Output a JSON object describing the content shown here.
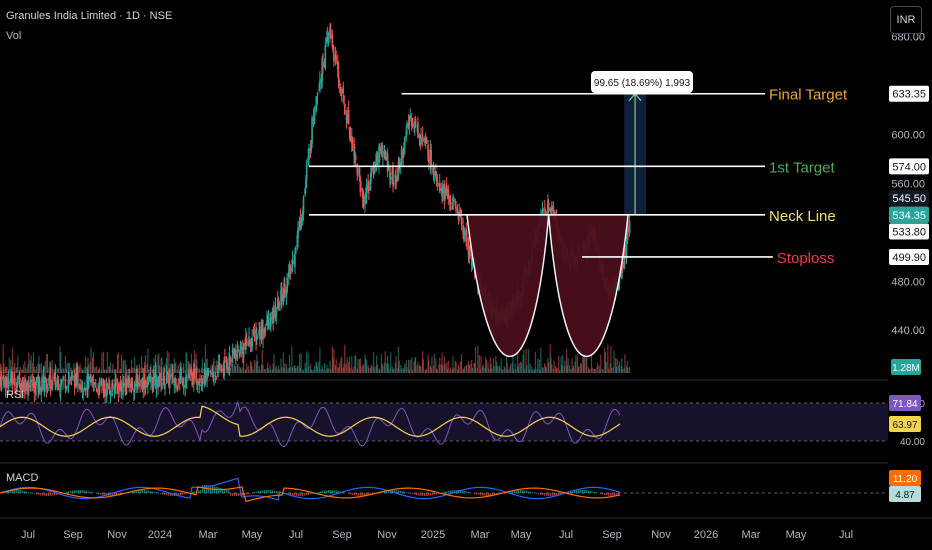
{
  "header": {
    "title": "Granules India Limited · 1D · NSE",
    "sub": "Vol",
    "currency": "INR"
  },
  "panes": {
    "rsi": "RSI",
    "macd": "MACD"
  },
  "chart_data": {
    "type": "line",
    "title": "Granules India Limited · 1D · NSE",
    "price_axis": {
      "ticks": [
        680,
        640,
        600,
        560,
        520,
        480,
        440
      ],
      "labels": [
        "680.00",
        "600.00",
        "560.00",
        "480.00",
        "440.00"
      ],
      "ylim": [
        405,
        710
      ]
    },
    "x_axis": {
      "labels": [
        "Jul",
        "Sep",
        "Nov",
        "2024",
        "Mar",
        "May",
        "Jul",
        "Sep",
        "Nov",
        "2025",
        "Mar",
        "May",
        "Jul",
        "Sep",
        "Nov",
        "2026",
        "Mar",
        "May",
        "Jul"
      ],
      "start": "2023-07-01",
      "end": "2026-08-15"
    },
    "close_series": {
      "x": [
        "2023-07-01",
        "2023-08-15",
        "2023-10-01",
        "2023-11-15",
        "2024-01-01",
        "2024-02-15",
        "2024-04-01",
        "2024-05-15",
        "2024-06-15",
        "2024-07-10",
        "2024-07-25",
        "2024-08-10",
        "2024-08-28",
        "2024-09-10",
        "2024-09-25",
        "2024-10-10",
        "2024-11-01",
        "2024-11-20",
        "2024-12-10",
        "2024-12-30",
        "2025-01-20",
        "2025-02-10",
        "2025-03-01",
        "2025-03-20",
        "2025-04-10",
        "2025-05-01",
        "2025-05-25",
        "2025-06-10",
        "2025-06-25",
        "2025-07-10",
        "2025-08-01",
        "2025-08-20",
        "2025-09-05",
        "2025-09-18"
      ],
      "y": [
        400,
        395,
        400,
        392,
        398,
        400,
        403,
        430,
        448,
        490,
        545,
        630,
        685,
        640,
        598,
        545,
        590,
        560,
        615,
        590,
        555,
        535,
        490,
        460,
        450,
        470,
        530,
        545,
        500,
        498,
        520,
        470,
        480,
        534
      ]
    },
    "levels": [
      {
        "name": "Final Target",
        "value": 633.35,
        "label": "633.35",
        "color": "#f0a430"
      },
      {
        "name": "1st Target",
        "value": 574.0,
        "label": "574.00",
        "color": "#4caf50"
      },
      {
        "name": "Neck Line",
        "value": 534.35,
        "label": "534.35",
        "color": "#f5e16b"
      },
      {
        "name": "Stoploss",
        "value": 499.9,
        "label": "499.90",
        "color": "#f23645"
      }
    ],
    "extra_price_labels": [
      {
        "value": 545.5,
        "label": "545.50"
      },
      {
        "value": 533.8,
        "label": "533.80"
      }
    ],
    "measure": {
      "label": "99.65 (18.69%) 1,993"
    },
    "volume_label": "1.28M",
    "rsi": {
      "levels": [
        80,
        40
      ],
      "level_labels": [
        "80.00",
        "40.00"
      ],
      "values": [
        71.84,
        63.97
      ],
      "labels": [
        "71.84",
        "63.97"
      ]
    },
    "macd": {
      "values": [
        11.2,
        4.87
      ],
      "labels": [
        "11.20",
        "4.87"
      ]
    },
    "colors": {
      "up": "#26a69a",
      "down": "#ef5350",
      "rsi": "#7e57c2",
      "rsi_ma": "#f5d547",
      "macd": "#2962ff",
      "signal": "#ff6d00",
      "cup": "#4a0f1c"
    }
  }
}
